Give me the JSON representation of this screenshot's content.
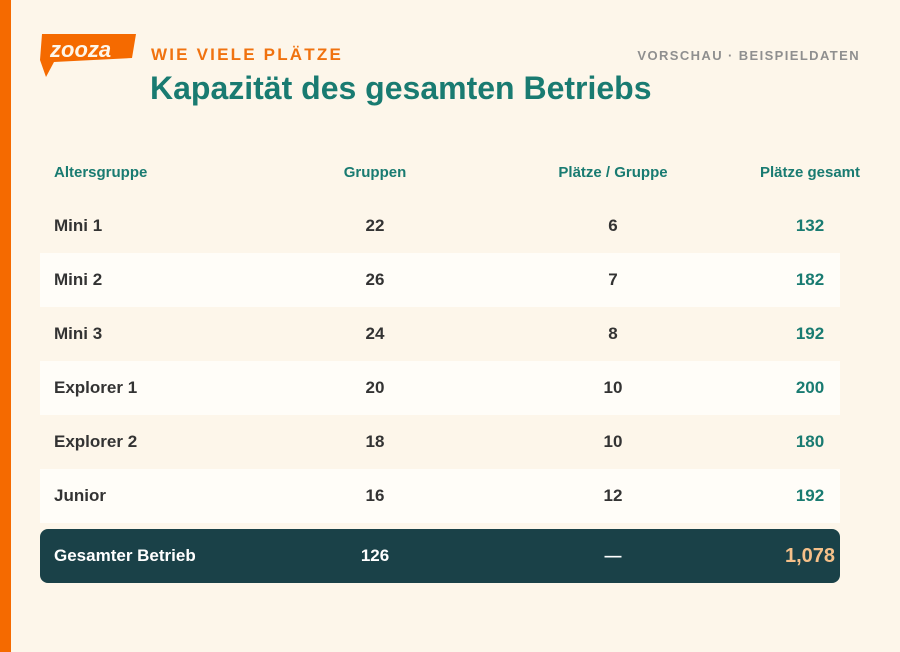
{
  "brand": {
    "logo_text": "zooza",
    "accent": "#f56a00",
    "teal": "#197b71",
    "dark": "#1a4148"
  },
  "header": {
    "kicker": "Wie viele Plätze",
    "meta": "Vorschau · Beispieldaten",
    "title": "Kapazität des gesamten Betriebs"
  },
  "table": {
    "columns": [
      "Altersgruppe",
      "Gruppen",
      "Plätze / Gruppe",
      "Plätze gesamt"
    ],
    "rows": [
      {
        "group": "Mini 1",
        "groups": "22",
        "per_group": "6",
        "total": "132"
      },
      {
        "group": "Mini 2",
        "groups": "26",
        "per_group": "7",
        "total": "182"
      },
      {
        "group": "Mini 3",
        "groups": "24",
        "per_group": "8",
        "total": "192"
      },
      {
        "group": "Explorer 1",
        "groups": "20",
        "per_group": "10",
        "total": "200"
      },
      {
        "group": "Explorer 2",
        "groups": "18",
        "per_group": "10",
        "total": "180"
      },
      {
        "group": "Junior",
        "groups": "16",
        "per_group": "12",
        "total": "192"
      }
    ],
    "footer": {
      "group": "Gesamter Betrieb",
      "groups": "126",
      "per_group": "—",
      "total": "1,078"
    }
  }
}
